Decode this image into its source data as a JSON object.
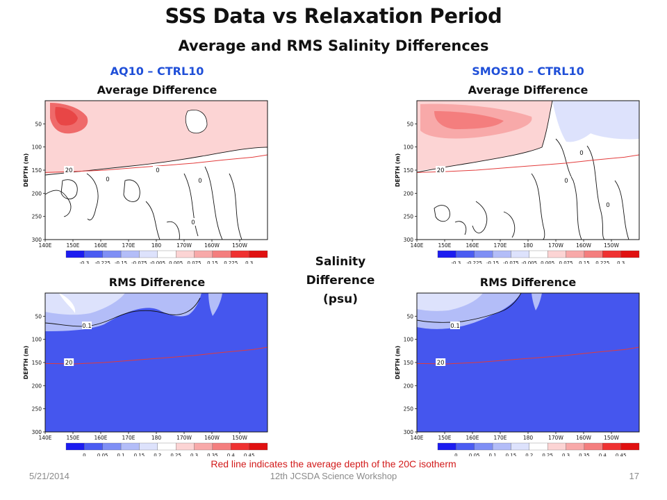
{
  "header": {
    "title": "SSS Data vs Relaxation Period",
    "subtitle": "Average and RMS Salinity Differences"
  },
  "experiments": {
    "left": "AQ10 – CTRL10",
    "right": "SMOS10 – CTRL10"
  },
  "center_label": {
    "line1": "Salinity",
    "line2": "Difference",
    "line3": "(psu)"
  },
  "footnote": "Red line indicates the average depth of the 20C isotherm",
  "footer": {
    "date": "5/21/2014",
    "event": "12th JCSDA Science Workshop",
    "page": "17"
  },
  "colors": {
    "experiment_label": "#1f4fd8",
    "isotherm_line": "#e23b3b",
    "rms_fill": "#4556ee"
  },
  "chart_data": [
    {
      "id": "aq10-average",
      "type": "heatmap",
      "title": "Average Difference",
      "ylabel": "DEPTH (m)",
      "x_ticks": [
        "140E",
        "150E",
        "160E",
        "170E",
        "180",
        "170W",
        "160W",
        "150W"
      ],
      "y_ticks": [
        "50",
        "100",
        "150",
        "200",
        "250",
        "300"
      ],
      "ylim": [
        0,
        300
      ],
      "colorbar_labels": [
        "-0.3",
        "-0.225",
        "-0.15",
        "-0.075",
        "-0.005",
        "0.005",
        "0.075",
        "0.15",
        "0.225",
        "0.3"
      ],
      "contour_labels": [
        "20",
        "0",
        "0",
        "0",
        "0"
      ],
      "isotherm_20C": {
        "lon": [
          140,
          150,
          160,
          170,
          180,
          190,
          200,
          210,
          215
        ],
        "depth": [
          155,
          153,
          150,
          145,
          140,
          135,
          128,
          122,
          117
        ]
      }
    },
    {
      "id": "smos10-average",
      "type": "heatmap",
      "title": "Average Difference",
      "ylabel": "DEPTH (m)",
      "x_ticks": [
        "140E",
        "150E",
        "160E",
        "170E",
        "180",
        "170W",
        "160W",
        "150W"
      ],
      "y_ticks": [
        "50",
        "100",
        "150",
        "200",
        "250",
        "300"
      ],
      "ylim": [
        0,
        300
      ],
      "colorbar_labels": [
        "-0.3",
        "-0.225",
        "-0.15",
        "-0.075",
        "-0.005",
        "0.005",
        "0.075",
        "0.15",
        "0.225",
        "0.3"
      ],
      "contour_labels": [
        "20",
        "0",
        "0",
        "0"
      ],
      "isotherm_20C": {
        "lon": [
          140,
          150,
          160,
          170,
          180,
          190,
          200,
          210,
          215
        ],
        "depth": [
          155,
          153,
          150,
          145,
          140,
          135,
          128,
          122,
          117
        ]
      }
    },
    {
      "id": "aq10-rms",
      "type": "heatmap",
      "title": "RMS Difference",
      "ylabel": "DEPTH (m)",
      "x_ticks": [
        "140E",
        "150E",
        "160E",
        "170E",
        "180",
        "170W",
        "160W",
        "150W"
      ],
      "y_ticks": [
        "50",
        "100",
        "150",
        "200",
        "250",
        "300"
      ],
      "ylim": [
        0,
        300
      ],
      "colorbar_labels": [
        "0",
        "0.05",
        "0.1",
        "0.15",
        "0.2",
        "0.25",
        "0.3",
        "0.35",
        "0.4",
        "0.45"
      ],
      "contour_labels": [
        "0.1",
        "20"
      ],
      "isotherm_20C": {
        "lon": [
          140,
          150,
          160,
          170,
          180,
          190,
          200,
          210,
          215
        ],
        "depth": [
          152,
          153,
          150,
          145,
          140,
          135,
          128,
          122,
          117
        ]
      }
    },
    {
      "id": "smos10-rms",
      "type": "heatmap",
      "title": "RMS Difference",
      "ylabel": "DEPTH (m)",
      "x_ticks": [
        "140E",
        "150E",
        "160E",
        "170E",
        "180",
        "170W",
        "160W",
        "150W"
      ],
      "y_ticks": [
        "50",
        "100",
        "150",
        "200",
        "250",
        "300"
      ],
      "ylim": [
        0,
        300
      ],
      "colorbar_labels": [
        "0",
        "0.05",
        "0.1",
        "0.15",
        "0.2",
        "0.25",
        "0.3",
        "0.35",
        "0.4",
        "0.45"
      ],
      "contour_labels": [
        "0.1",
        "20"
      ],
      "isotherm_20C": {
        "lon": [
          140,
          150,
          160,
          170,
          180,
          190,
          200,
          210,
          215
        ],
        "depth": [
          152,
          153,
          150,
          145,
          140,
          135,
          128,
          122,
          117
        ]
      }
    }
  ]
}
